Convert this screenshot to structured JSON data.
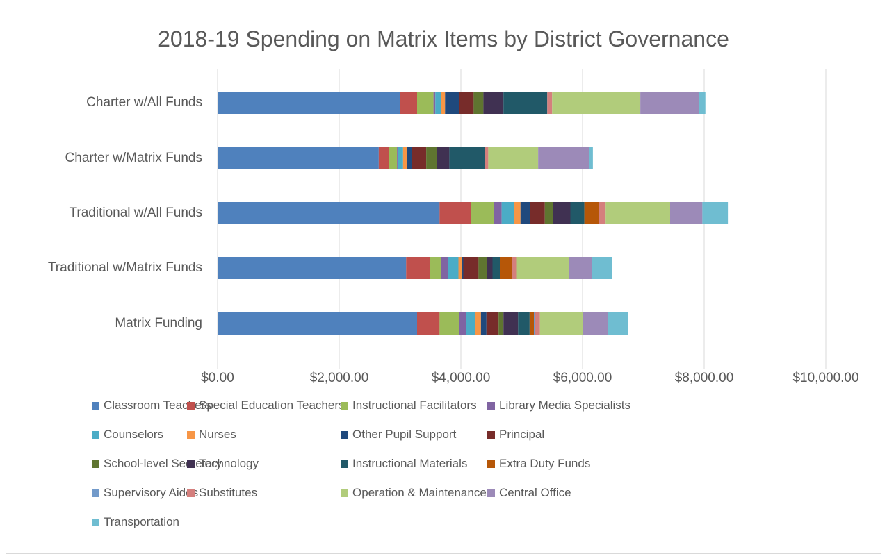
{
  "chart_data": {
    "type": "bar",
    "orientation": "horizontal",
    "stacked": true,
    "title": "2018-19 Spending on Matrix Items by District Governance",
    "xlabel": "",
    "ylabel": "",
    "xlim": [
      0,
      10000
    ],
    "x_ticks": [
      0,
      2000,
      4000,
      6000,
      8000,
      10000
    ],
    "x_tick_labels": [
      "$0.00",
      "$2,000.00",
      "$4,000.00",
      "$6,000.00",
      "$8,000.00",
      "$10,000.00"
    ],
    "grid": "vertical",
    "legend_position": "bottom",
    "categories": [
      "Charter w/All Funds",
      "Charter w/Matrix Funds",
      "Traditional w/All Funds",
      "Traditional w/Matrix Funds",
      "Matrix Funding"
    ],
    "series": [
      {
        "name": "Classroom Teachers",
        "color": "#4F81BD",
        "values": [
          3000,
          2650,
          3650,
          3100,
          3280
        ]
      },
      {
        "name": "Special Education Teachers",
        "color": "#C0504D",
        "values": [
          280,
          170,
          520,
          390,
          370
        ]
      },
      {
        "name": "Instructional Facilitators",
        "color": "#9BBB59",
        "values": [
          270,
          130,
          370,
          180,
          320
        ]
      },
      {
        "name": "Library Media Specialists",
        "color": "#8064A2",
        "values": [
          30,
          20,
          130,
          120,
          120
        ]
      },
      {
        "name": "Counselors",
        "color": "#4BACC6",
        "values": [
          90,
          80,
          200,
          170,
          150
        ]
      },
      {
        "name": "Nurses",
        "color": "#F79646",
        "values": [
          70,
          60,
          110,
          60,
          90
        ]
      },
      {
        "name": "Other Pupil Support",
        "color": "#1F497D",
        "values": [
          230,
          90,
          160,
          20,
          90
        ]
      },
      {
        "name": "Principal",
        "color": "#772C2A",
        "values": [
          240,
          230,
          240,
          250,
          200
        ]
      },
      {
        "name": "School-level Secretary",
        "color": "#5F7530",
        "values": [
          160,
          170,
          140,
          140,
          80
        ]
      },
      {
        "name": "Technology",
        "color": "#403152",
        "values": [
          330,
          210,
          280,
          90,
          240
        ]
      },
      {
        "name": "Instructional Materials",
        "color": "#215968",
        "values": [
          720,
          580,
          230,
          120,
          190
        ]
      },
      {
        "name": "Extra Duty Funds",
        "color": "#B65708",
        "values": [
          0,
          0,
          240,
          200,
          70
        ]
      },
      {
        "name": "Supervisory Aides",
        "color": "#729ACA",
        "values": [
          0,
          0,
          0,
          0,
          20
        ]
      },
      {
        "name": "Substitutes",
        "color": "#D47F7D",
        "values": [
          80,
          60,
          110,
          80,
          80
        ]
      },
      {
        "name": "Operation & Maintenance",
        "color": "#B1CC7B",
        "values": [
          1450,
          820,
          1060,
          860,
          700
        ]
      },
      {
        "name": "Central Office",
        "color": "#9C8AB8",
        "values": [
          960,
          840,
          530,
          380,
          420
        ]
      },
      {
        "name": "Transportation",
        "color": "#6FBDD1",
        "values": [
          110,
          60,
          420,
          330,
          330
        ]
      }
    ]
  }
}
